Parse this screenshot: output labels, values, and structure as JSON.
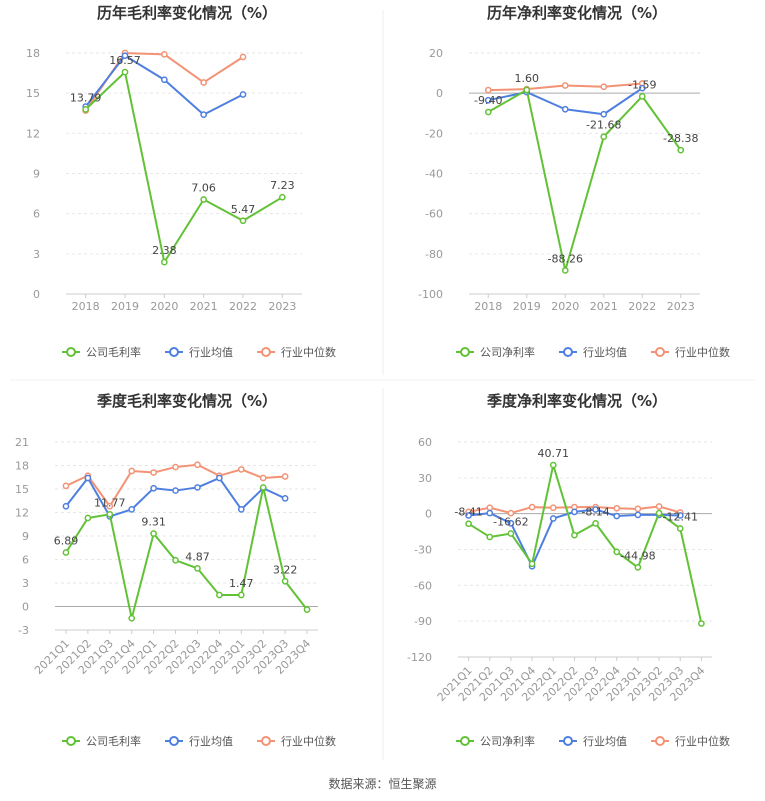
{
  "source_text": "数据来源：恒生聚源",
  "colors": {
    "company": "#62c236",
    "avg": "#4e7fe0",
    "median": "#f39274",
    "axis": "#999999",
    "grid": "#e6e6e6",
    "text": "#444444"
  },
  "chart_data": [
    {
      "type": "line",
      "title": "历年毛利率变化情况（%）",
      "categories": [
        "2018",
        "2019",
        "2020",
        "2021",
        "2022",
        "2023"
      ],
      "ylim": [
        0,
        18
      ],
      "yticks": [
        0,
        3,
        6,
        9,
        12,
        15,
        18
      ],
      "series": [
        {
          "name": "公司毛利率",
          "values": [
            13.79,
            16.57,
            2.38,
            7.06,
            5.47,
            7.23
          ],
          "labels": [
            "13.79",
            "16.57",
            "2.38",
            "7.06",
            "5.47",
            "7.23"
          ]
        },
        {
          "name": "行业均值",
          "values": [
            14.0,
            17.8,
            16.0,
            13.4,
            14.9,
            null
          ]
        },
        {
          "name": "行业中位数",
          "values": [
            13.7,
            18.0,
            17.9,
            15.8,
            17.7,
            null
          ]
        }
      ],
      "legend": "bottom"
    },
    {
      "type": "line",
      "title": "历年净利率变化情况（%）",
      "categories": [
        "2018",
        "2019",
        "2020",
        "2021",
        "2022",
        "2023"
      ],
      "ylim": [
        -100,
        20
      ],
      "yticks": [
        -100,
        -80,
        -60,
        -40,
        -20,
        0,
        20
      ],
      "series": [
        {
          "name": "公司净利率",
          "values": [
            -9.4,
            1.6,
            -88.26,
            -21.68,
            -1.59,
            -28.38
          ],
          "labels": [
            "-9.40",
            "1.60",
            "-88.26",
            "-21.68",
            "-1.59",
            "-28.38"
          ]
        },
        {
          "name": "行业均值",
          "values": [
            -3.5,
            0.5,
            -8.0,
            -10.5,
            2.5,
            null
          ]
        },
        {
          "name": "行业中位数",
          "values": [
            1.5,
            2.0,
            3.8,
            3.2,
            4.8,
            null
          ]
        }
      ],
      "legend": "bottom"
    },
    {
      "type": "line",
      "title": "季度毛利率变化情况（%）",
      "categories": [
        "2021Q1",
        "2021Q2",
        "2021Q3",
        "2021Q4",
        "2022Q1",
        "2022Q2",
        "2022Q3",
        "2022Q4",
        "2023Q1",
        "2023Q2",
        "2023Q3",
        "2023Q4"
      ],
      "ylim": [
        -3,
        21
      ],
      "yticks": [
        -3,
        0,
        3,
        6,
        9,
        12,
        15,
        18,
        21
      ],
      "series": [
        {
          "name": "公司毛利率",
          "values": [
            6.89,
            11.3,
            11.77,
            -1.5,
            9.31,
            5.9,
            4.87,
            1.47,
            1.47,
            15.2,
            3.22,
            -0.4
          ],
          "labels": [
            "6.89",
            "",
            "11.77",
            "",
            "9.31",
            "",
            "4.87",
            "",
            "1.47",
            "",
            "3.22",
            ""
          ]
        },
        {
          "name": "行业均值",
          "values": [
            12.8,
            16.4,
            11.5,
            12.4,
            15.1,
            14.8,
            15.2,
            16.4,
            12.4,
            15.1,
            13.8,
            null
          ]
        },
        {
          "name": "行业中位数",
          "values": [
            15.4,
            16.7,
            12.8,
            17.3,
            17.1,
            17.8,
            18.1,
            16.7,
            17.5,
            16.4,
            16.6,
            null
          ]
        }
      ],
      "legend": "bottom"
    },
    {
      "type": "line",
      "title": "季度净利率变化情况（%）",
      "categories": [
        "2021Q1",
        "2021Q2",
        "2021Q3",
        "2021Q4",
        "2022Q1",
        "2022Q2",
        "2022Q3",
        "2022Q4",
        "2023Q1",
        "2023Q2",
        "2023Q3",
        "2023Q4"
      ],
      "ylim": [
        -120,
        60
      ],
      "yticks": [
        -120,
        -90,
        -60,
        -30,
        0,
        30,
        60
      ],
      "series": [
        {
          "name": "公司净利率",
          "values": [
            -8.41,
            -19.5,
            -16.62,
            -42.0,
            40.71,
            -18.0,
            -8.14,
            -32.0,
            -44.98,
            0.5,
            -12.41,
            -92.0
          ],
          "labels": [
            "-8.41",
            "",
            "-16.62",
            "",
            "40.71",
            "",
            "-8.14",
            "",
            "-44.98",
            "",
            "-12.41",
            ""
          ]
        },
        {
          "name": "行业均值",
          "values": [
            -1.5,
            0.5,
            -8.0,
            -44.0,
            -4.0,
            1.5,
            3.5,
            -2.0,
            -1.0,
            -1.0,
            -1.5,
            null
          ]
        },
        {
          "name": "行业中位数",
          "values": [
            1.5,
            5.0,
            0.5,
            5.5,
            5.0,
            5.5,
            5.5,
            4.5,
            4.0,
            6.0,
            1.0,
            null
          ]
        }
      ],
      "legend": "bottom"
    }
  ]
}
